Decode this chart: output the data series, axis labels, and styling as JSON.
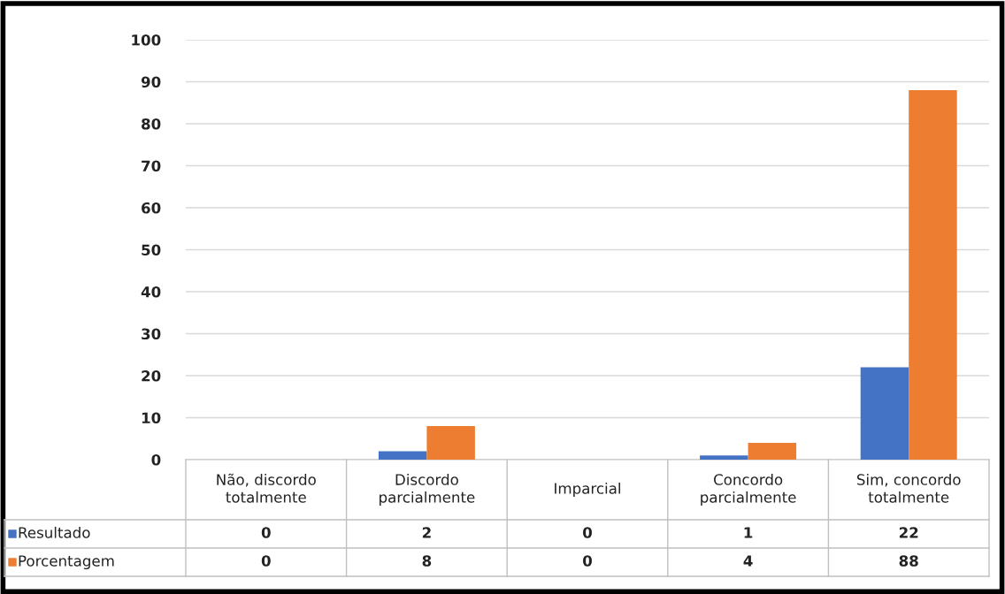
{
  "chart_data": {
    "type": "bar",
    "categories": [
      "Não, discordo totalmente",
      "Discordo parcialmente",
      "Imparcial",
      "Concordo parcialmente",
      "Sim, concordo totalmente"
    ],
    "series": [
      {
        "name": "Resultado",
        "color": "#4472c4",
        "values": [
          0,
          2,
          0,
          1,
          22
        ]
      },
      {
        "name": "Porcentagem",
        "color": "#ed7d31",
        "values": [
          0,
          8,
          0,
          4,
          88
        ]
      }
    ],
    "ylim": [
      0,
      100
    ],
    "yticks": [
      0,
      10,
      20,
      30,
      40,
      50,
      60,
      70,
      80,
      90,
      100
    ],
    "grid": "y",
    "legend": "bottom",
    "data_labels": true
  }
}
